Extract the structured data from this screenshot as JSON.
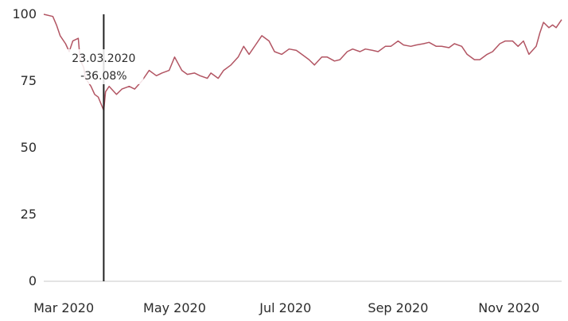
{
  "chart_data": {
    "type": "line",
    "title": "",
    "xlabel": "",
    "ylabel": "",
    "x_ticks": [
      "Mar 2020",
      "May 2020",
      "Jul 2020",
      "Sep 2020",
      "Nov 2020"
    ],
    "y_ticks": [
      0,
      25,
      50,
      75,
      100
    ],
    "ylim": [
      0,
      100
    ],
    "xlim": [
      "2020-02-19",
      "2020-11-30"
    ],
    "grid": false,
    "line_color": "#b25563",
    "marker_color": "#222222",
    "series": [
      {
        "points": [
          [
            "2020-02-19",
            100
          ],
          [
            "2020-02-24",
            99.2
          ],
          [
            "2020-02-26",
            96
          ],
          [
            "2020-02-28",
            92
          ],
          [
            "2020-03-02",
            89
          ],
          [
            "2020-03-04",
            86
          ],
          [
            "2020-03-06",
            90
          ],
          [
            "2020-03-09",
            91
          ],
          [
            "2020-03-10",
            83
          ],
          [
            "2020-03-12",
            80
          ],
          [
            "2020-03-13",
            76
          ],
          [
            "2020-03-16",
            73
          ],
          [
            "2020-03-18",
            70
          ],
          [
            "2020-03-20",
            69
          ],
          [
            "2020-03-23",
            64
          ],
          [
            "2020-03-24",
            71
          ],
          [
            "2020-03-26",
            73
          ],
          [
            "2020-03-30",
            70
          ],
          [
            "2020-04-02",
            72
          ],
          [
            "2020-04-06",
            73
          ],
          [
            "2020-04-09",
            72
          ],
          [
            "2020-04-13",
            75
          ],
          [
            "2020-04-17",
            79
          ],
          [
            "2020-04-21",
            77
          ],
          [
            "2020-04-24",
            78
          ],
          [
            "2020-04-28",
            79
          ],
          [
            "2020-05-01",
            84
          ],
          [
            "2020-05-05",
            79
          ],
          [
            "2020-05-08",
            77.5
          ],
          [
            "2020-05-12",
            78
          ],
          [
            "2020-05-15",
            77
          ],
          [
            "2020-05-19",
            76
          ],
          [
            "2020-05-21",
            78
          ],
          [
            "2020-05-25",
            76
          ],
          [
            "2020-05-28",
            79
          ],
          [
            "2020-06-01",
            81
          ],
          [
            "2020-06-05",
            84
          ],
          [
            "2020-06-08",
            88
          ],
          [
            "2020-06-11",
            85
          ],
          [
            "2020-06-15",
            89
          ],
          [
            "2020-06-18",
            92
          ],
          [
            "2020-06-22",
            90
          ],
          [
            "2020-06-25",
            86
          ],
          [
            "2020-06-29",
            85
          ],
          [
            "2020-07-03",
            87
          ],
          [
            "2020-07-07",
            86.5
          ],
          [
            "2020-07-10",
            85
          ],
          [
            "2020-07-14",
            83
          ],
          [
            "2020-07-17",
            81
          ],
          [
            "2020-07-21",
            84
          ],
          [
            "2020-07-24",
            84
          ],
          [
            "2020-07-28",
            82.5
          ],
          [
            "2020-07-31",
            83
          ],
          [
            "2020-08-04",
            86
          ],
          [
            "2020-08-07",
            87
          ],
          [
            "2020-08-11",
            86
          ],
          [
            "2020-08-14",
            87
          ],
          [
            "2020-08-18",
            86.5
          ],
          [
            "2020-08-21",
            86
          ],
          [
            "2020-08-25",
            88
          ],
          [
            "2020-08-28",
            88
          ],
          [
            "2020-09-01",
            90
          ],
          [
            "2020-09-04",
            88.5
          ],
          [
            "2020-09-08",
            88
          ],
          [
            "2020-09-11",
            88.5
          ],
          [
            "2020-09-15",
            89
          ],
          [
            "2020-09-18",
            89.5
          ],
          [
            "2020-09-22",
            88
          ],
          [
            "2020-09-25",
            88
          ],
          [
            "2020-09-29",
            87.5
          ],
          [
            "2020-10-02",
            89
          ],
          [
            "2020-10-06",
            88
          ],
          [
            "2020-10-09",
            85
          ],
          [
            "2020-10-13",
            83
          ],
          [
            "2020-10-16",
            83
          ],
          [
            "2020-10-20",
            85
          ],
          [
            "2020-10-23",
            86
          ],
          [
            "2020-10-27",
            89
          ],
          [
            "2020-10-30",
            90
          ],
          [
            "2020-11-03",
            90
          ],
          [
            "2020-11-06",
            88
          ],
          [
            "2020-11-09",
            90
          ],
          [
            "2020-11-12",
            85
          ],
          [
            "2020-11-16",
            88
          ],
          [
            "2020-11-18",
            93
          ],
          [
            "2020-11-20",
            97
          ],
          [
            "2020-11-23",
            95
          ],
          [
            "2020-11-25",
            96
          ],
          [
            "2020-11-27",
            95
          ],
          [
            "2020-11-30",
            98
          ]
        ]
      }
    ],
    "annotation": {
      "date": "2020-03-23",
      "label": "23.03.2020",
      "value_label": "-36.08%"
    }
  }
}
